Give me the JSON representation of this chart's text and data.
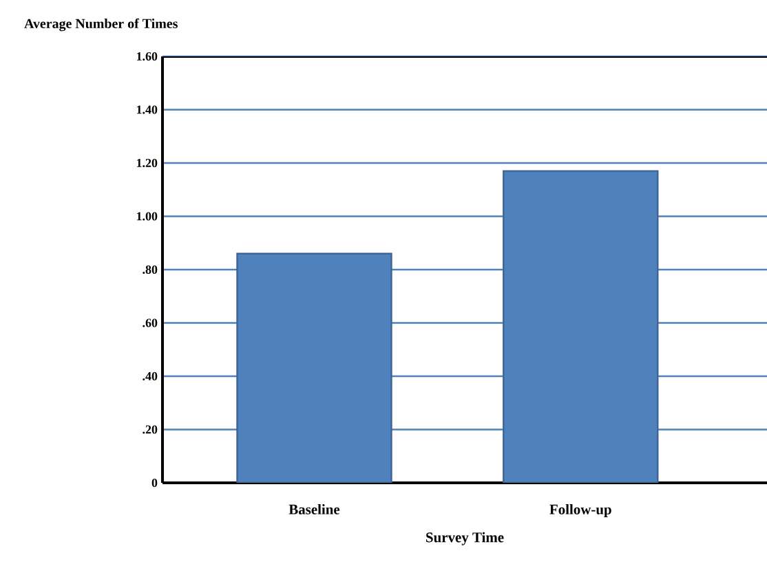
{
  "chart_data": {
    "type": "bar",
    "xlabel": "Survey Time",
    "ylabel": "Average Number of Times",
    "categories": [
      "Baseline",
      "Follow-up"
    ],
    "values": [
      0.86,
      1.17
    ],
    "color": "#4f81bd",
    "ylim": [
      0,
      1.6
    ],
    "yticks": [
      0,
      {
        "value": 0.2,
        "label": ".20"
      },
      {
        "value": 0.4,
        "label": ".40"
      },
      {
        "value": 0.6,
        "label": ".60"
      },
      {
        "value": 0.8,
        "label": ".80"
      },
      {
        "value": 1.0,
        "label": "1.00"
      },
      {
        "value": 1.2,
        "label": "1.20"
      },
      {
        "value": 1.4,
        "label": "1.40"
      },
      {
        "value": 1.6,
        "label": "1.60"
      }
    ],
    "grid": "y"
  }
}
